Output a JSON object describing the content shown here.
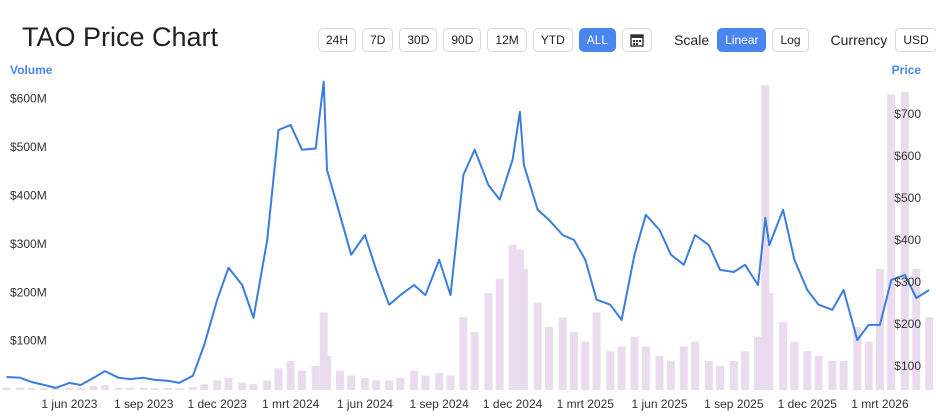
{
  "title": "TAO Price Chart",
  "controls": {
    "ranges": [
      "24H",
      "7D",
      "30D",
      "90D",
      "12M",
      "YTD",
      "ALL"
    ],
    "active_range": "ALL",
    "scale_label": "Scale",
    "scales": [
      "Linear",
      "Log"
    ],
    "active_scale": "Linear",
    "currency_label": "Currency",
    "currency": "USD"
  },
  "chart_data": {
    "type": "bar-line",
    "x": [
      "2023-03-15",
      "2023-04-01",
      "2023-04-15",
      "2023-05-01",
      "2023-05-15",
      "2023-06-01",
      "2023-06-15",
      "2023-07-01",
      "2023-07-15",
      "2023-08-01",
      "2023-08-15",
      "2023-09-01",
      "2023-09-15",
      "2023-10-01",
      "2023-10-15",
      "2023-11-01",
      "2023-11-15",
      "2023-12-01",
      "2023-12-15",
      "2024-01-01",
      "2024-01-15",
      "2024-02-01",
      "2024-02-15",
      "2024-03-01",
      "2024-03-15",
      "2024-04-01",
      "2024-04-11",
      "2024-04-15",
      "2024-05-01",
      "2024-05-15",
      "2024-06-01",
      "2024-06-15",
      "2024-07-01",
      "2024-07-15",
      "2024-08-01",
      "2024-08-15",
      "2024-09-01",
      "2024-09-15",
      "2024-10-01",
      "2024-10-15",
      "2024-11-01",
      "2024-11-15",
      "2024-12-01",
      "2024-12-10",
      "2024-12-15",
      "2025-01-01",
      "2025-01-15",
      "2025-02-01",
      "2025-02-15",
      "2025-03-01",
      "2025-03-15",
      "2025-04-01",
      "2025-04-15",
      "2025-05-01",
      "2025-05-15",
      "2025-06-01",
      "2025-06-15",
      "2025-07-01",
      "2025-07-15",
      "2025-08-01",
      "2025-08-15",
      "2025-09-01",
      "2025-09-15",
      "2025-10-01",
      "2025-10-10",
      "2025-10-15",
      "2025-11-01",
      "2025-11-15",
      "2025-12-01",
      "2025-12-15",
      "2026-01-01",
      "2026-01-15",
      "2026-02-01",
      "2026-02-15",
      "2026-03-01",
      "2026-03-15",
      "2026-04-01",
      "2026-04-15",
      "2026-05-01"
    ],
    "series": [
      {
        "name": "Volume",
        "type": "bar",
        "axis": "y",
        "color": "#eadcee",
        "values": [
          5000000,
          5000000,
          4000000,
          4000000,
          4000000,
          5000000,
          5000000,
          8000000,
          10000000,
          5000000,
          5000000,
          5000000,
          4000000,
          4000000,
          4000000,
          6000000,
          12000000,
          20000000,
          25000000,
          15000000,
          12000000,
          20000000,
          45000000,
          60000000,
          40000000,
          50000000,
          160000000,
          70000000,
          40000000,
          30000000,
          25000000,
          20000000,
          20000000,
          25000000,
          40000000,
          30000000,
          35000000,
          30000000,
          150000000,
          120000000,
          200000000,
          230000000,
          300000000,
          290000000,
          250000000,
          180000000,
          130000000,
          150000000,
          120000000,
          100000000,
          160000000,
          80000000,
          90000000,
          110000000,
          90000000,
          70000000,
          60000000,
          90000000,
          100000000,
          60000000,
          50000000,
          60000000,
          80000000,
          110000000,
          630000000,
          200000000,
          140000000,
          100000000,
          80000000,
          70000000,
          60000000,
          60000000,
          130000000,
          100000000,
          250000000,
          610000000,
          615000000,
          250000000,
          150000000
        ]
      },
      {
        "name": "Price",
        "type": "line",
        "axis": "y2",
        "color": "#3b7ddd",
        "values": [
          76,
          74,
          64,
          57,
          50,
          62,
          57,
          74,
          90,
          74,
          71,
          74,
          69,
          67,
          62,
          79,
          152,
          260,
          336,
          295,
          217,
          402,
          664,
          676,
          617,
          620,
          779,
          569,
          462,
          367,
          414,
          331,
          248,
          271,
          295,
          271,
          355,
          271,
          557,
          617,
          533,
          498,
          593,
          707,
          581,
          474,
          450,
          414,
          402,
          355,
          260,
          248,
          212,
          367,
          462,
          426,
          367,
          343,
          414,
          390,
          331,
          326,
          343,
          295,
          455,
          390,
          474,
          355,
          283,
          248,
          236,
          283,
          164,
          200,
          200,
          307,
          319,
          264,
          283
        ]
      }
    ],
    "xlim": [
      "2023-03-07",
      "2026-05-02"
    ],
    "xticks": [
      {
        "value": "2023-06-01",
        "label": "1 jun 2023"
      },
      {
        "value": "2023-09-01",
        "label": "1 sep 2023"
      },
      {
        "value": "2023-12-01",
        "label": "1 dec 2023"
      },
      {
        "value": "2024-03-01",
        "label": "1 mrt 2024"
      },
      {
        "value": "2024-06-01",
        "label": "1 jun 2024"
      },
      {
        "value": "2024-09-01",
        "label": "1 sep 2024"
      },
      {
        "value": "2024-12-01",
        "label": "1 dec 2024"
      },
      {
        "value": "2025-03-01",
        "label": "1 mrt 2025"
      },
      {
        "value": "2025-06-01",
        "label": "1 jun 2025"
      },
      {
        "value": "2025-09-01",
        "label": "1 sep 2025"
      },
      {
        "value": "2025-12-01",
        "label": "1 dec 2025"
      },
      {
        "value": "2026-03-01",
        "label": "1 mrt 2026"
      }
    ],
    "ylim": [
      0,
      640000000
    ],
    "yticks": [
      {
        "value": 100000000,
        "label": "$100M"
      },
      {
        "value": 200000000,
        "label": "$200M"
      },
      {
        "value": 300000000,
        "label": "$300M"
      },
      {
        "value": 400000000,
        "label": "$400M"
      },
      {
        "value": 500000000,
        "label": "$500M"
      },
      {
        "value": 600000000,
        "label": "$600M"
      }
    ],
    "y2lim": [
      45,
      783
    ],
    "y2ticks": [
      {
        "value": 100,
        "label": "$100"
      },
      {
        "value": 200,
        "label": "$200"
      },
      {
        "value": 300,
        "label": "$300"
      },
      {
        "value": 400,
        "label": "$400"
      },
      {
        "value": 500,
        "label": "$500"
      },
      {
        "value": 600,
        "label": "$600"
      },
      {
        "value": 700,
        "label": "$700"
      }
    ],
    "grid": false
  }
}
